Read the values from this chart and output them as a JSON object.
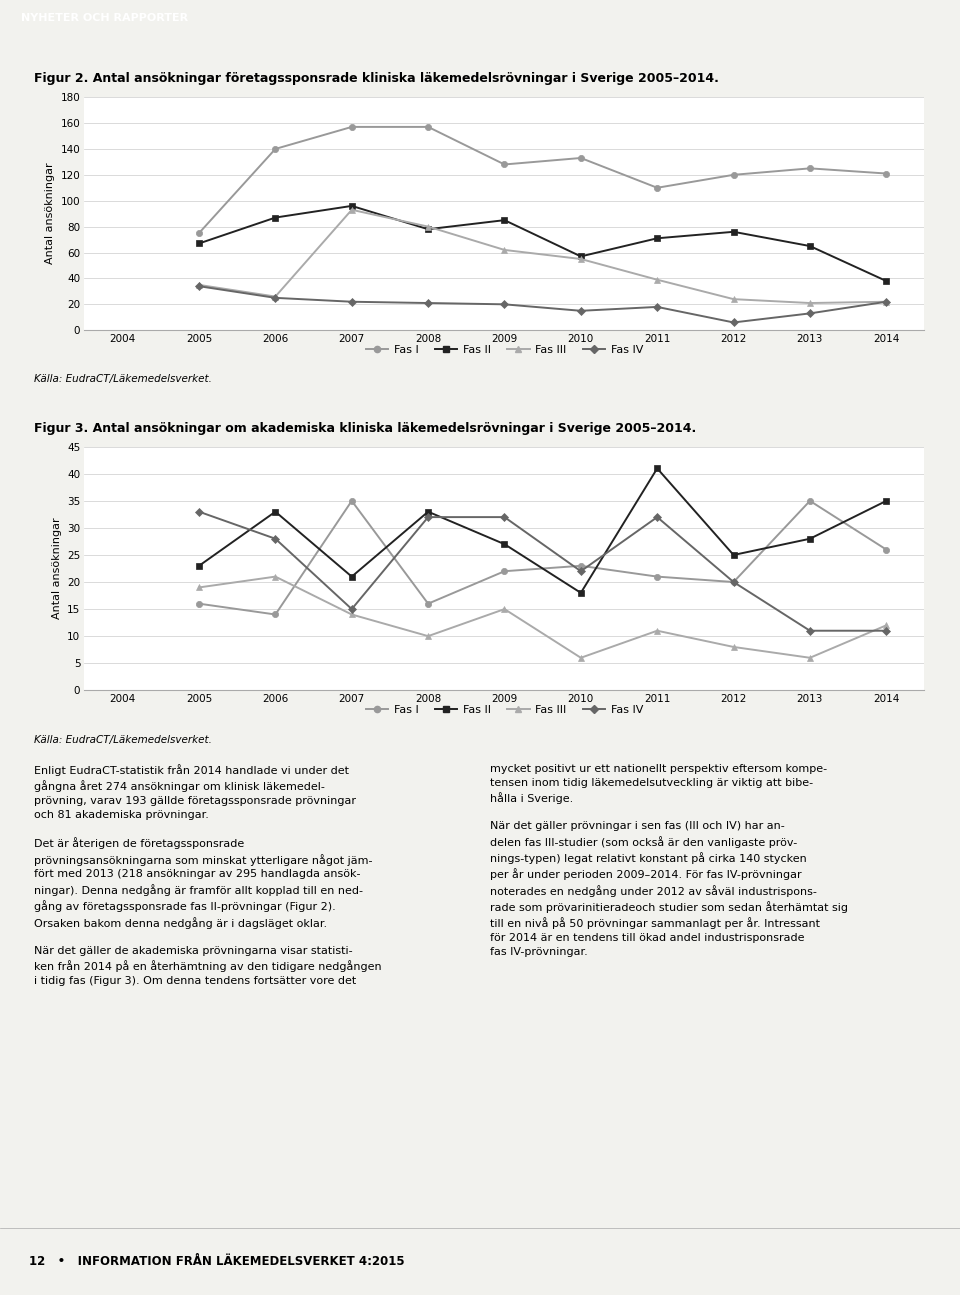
{
  "fig2_title": "Figur 2. Antal ansökningar företagssponsrade kliniska läkemedelsrövningar i Sverige 2005–2014.",
  "fig3_title": "Figur 3. Antal ansökningar om akademiska kliniska läkemedelsrövningar i Sverige 2005–2014.",
  "header_text": "NYHETER OCH RAPPORTER",
  "header_bg": "#2c6fad",
  "years": [
    2004,
    2005,
    2006,
    2007,
    2008,
    2009,
    2010,
    2011,
    2012,
    2013,
    2014
  ],
  "fig2": {
    "fas1": [
      null,
      75,
      140,
      157,
      157,
      128,
      133,
      110,
      120,
      125,
      121
    ],
    "fas2": [
      null,
      67,
      87,
      96,
      78,
      85,
      57,
      71,
      76,
      65,
      38
    ],
    "fas3": [
      null,
      35,
      26,
      93,
      80,
      62,
      55,
      39,
      24,
      21,
      22
    ],
    "fas4": [
      null,
      34,
      25,
      22,
      21,
      20,
      15,
      18,
      6,
      13,
      22
    ],
    "ylim": [
      0,
      180
    ],
    "yticks": [
      0,
      20,
      40,
      60,
      80,
      100,
      120,
      140,
      160,
      180
    ],
    "ylabel": "Antal ansökningar"
  },
  "fig3": {
    "fas1": [
      null,
      16,
      14,
      35,
      16,
      22,
      23,
      21,
      20,
      35,
      26
    ],
    "fas2": [
      null,
      23,
      33,
      21,
      33,
      27,
      18,
      41,
      25,
      28,
      35
    ],
    "fas3": [
      null,
      19,
      21,
      14,
      10,
      15,
      6,
      11,
      8,
      6,
      12
    ],
    "fas4": [
      null,
      33,
      28,
      15,
      32,
      32,
      22,
      32,
      20,
      11,
      11
    ],
    "ylim": [
      0,
      45
    ],
    "yticks": [
      0,
      5,
      10,
      15,
      20,
      25,
      30,
      35,
      40,
      45
    ],
    "ylabel": "Antal ansökningar"
  },
  "legend_labels": [
    "Fas I",
    "Fas II",
    "Fas III",
    "Fas IV"
  ],
  "colors": {
    "fas1": "#999999",
    "fas2": "#222222",
    "fas3": "#aaaaaa",
    "fas4": "#666666"
  },
  "markers": {
    "fas1": "o",
    "fas2": "s",
    "fas3": "^",
    "fas4": "D"
  },
  "source_text": "Källa: EudraCT/Läkemedelsverket.",
  "footer_text": "12   •   INFORMATION FRÅN LÄKEMEDELSVERKET 4:2015",
  "bg_color": "#f2f2ee",
  "footer_bg": "#e0e0dc"
}
